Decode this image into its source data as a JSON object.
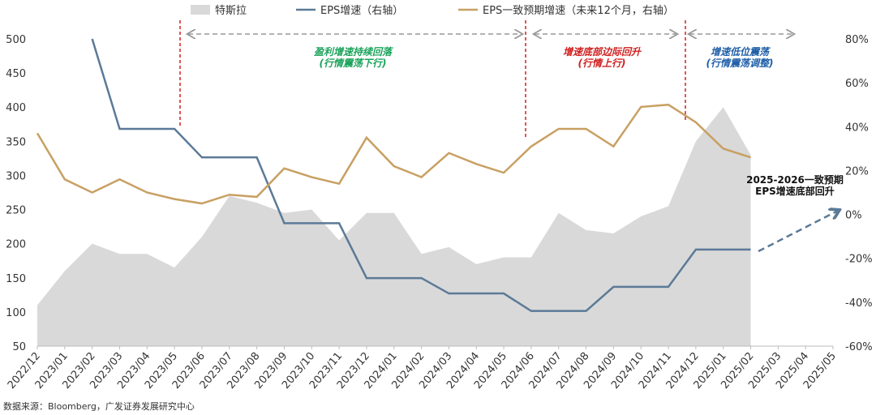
{
  "chart_data": {
    "type": "combo",
    "legend_position": "top",
    "categories": [
      "2022/12",
      "2023/01",
      "2023/02",
      "2023/03",
      "2023/04",
      "2023/05",
      "2023/06",
      "2023/07",
      "2023/08",
      "2023/09",
      "2023/10",
      "2023/11",
      "2023/12",
      "2024/01",
      "2024/02",
      "2024/03",
      "2024/04",
      "2024/05",
      "2024/06",
      "2024/07",
      "2024/08",
      "2024/09",
      "2024/10",
      "2024/11",
      "2024/12",
      "2025/01",
      "2025/02",
      "2025/03",
      "2025/04",
      "2025/05"
    ],
    "ylim": [
      50,
      500
    ],
    "yticks": [
      50,
      100,
      150,
      200,
      250,
      300,
      350,
      400,
      450,
      500
    ],
    "y2lim": [
      -60,
      80
    ],
    "y2ticks": [
      {
        "value": -60,
        "label": "-60%"
      },
      {
        "value": -40,
        "label": "-40%"
      },
      {
        "value": -20,
        "label": "-20%"
      },
      {
        "value": 0,
        "label": "0%"
      },
      {
        "value": 20,
        "label": "20%"
      },
      {
        "value": 40,
        "label": "40%"
      },
      {
        "value": 60,
        "label": "60%"
      },
      {
        "value": 80,
        "label": "80%"
      }
    ],
    "series": [
      {
        "name": "特斯拉",
        "kind": "area",
        "color": "#d9d9d9",
        "values": [
          110,
          160,
          200,
          185,
          185,
          165,
          210,
          270,
          260,
          245,
          250,
          205,
          245,
          245,
          185,
          195,
          170,
          180,
          180,
          245,
          220,
          215,
          240,
          255,
          350,
          400,
          330,
          null,
          null,
          null
        ]
      },
      {
        "name": "EPS增速（右轴）",
        "kind": "line",
        "axis": "y2",
        "color": "#5b7a97",
        "values": [
          null,
          null,
          80,
          39,
          39,
          39,
          26,
          26,
          26,
          -4,
          -4,
          -4,
          -29,
          -29,
          -29,
          -36,
          -36,
          -36,
          -44,
          -44,
          -44,
          -33,
          -33,
          -33,
          -16,
          -16,
          -16,
          null,
          null,
          null
        ]
      },
      {
        "name": "EPS一致预期增速（未来12个月，右轴）",
        "kind": "line",
        "axis": "y2",
        "color": "#c8a063",
        "values": [
          37,
          16,
          10,
          16,
          10,
          7,
          5,
          9,
          8,
          21,
          17,
          14,
          35,
          22,
          17,
          28,
          23,
          19,
          31,
          39,
          39,
          31,
          49,
          50,
          42,
          30,
          26,
          null,
          null,
          null
        ]
      }
    ],
    "annotations": [
      {
        "lines": [
          "盈利增速持续回落",
          "(行情震荡下行)"
        ],
        "color": "#1aa35a"
      },
      {
        "lines": [
          "增速底部边际回升",
          "(行情上行)"
        ],
        "color": "#d02020"
      },
      {
        "lines": [
          "增速低位震荡",
          "(行情震荡调整)"
        ],
        "color": "#1f5fa8"
      },
      {
        "lines": [
          "2025-2026一致预期",
          "EPS增速底部回升"
        ],
        "color": "#111111"
      }
    ],
    "source": "数据来源：Bloomberg，广发证券发展研究中心"
  }
}
